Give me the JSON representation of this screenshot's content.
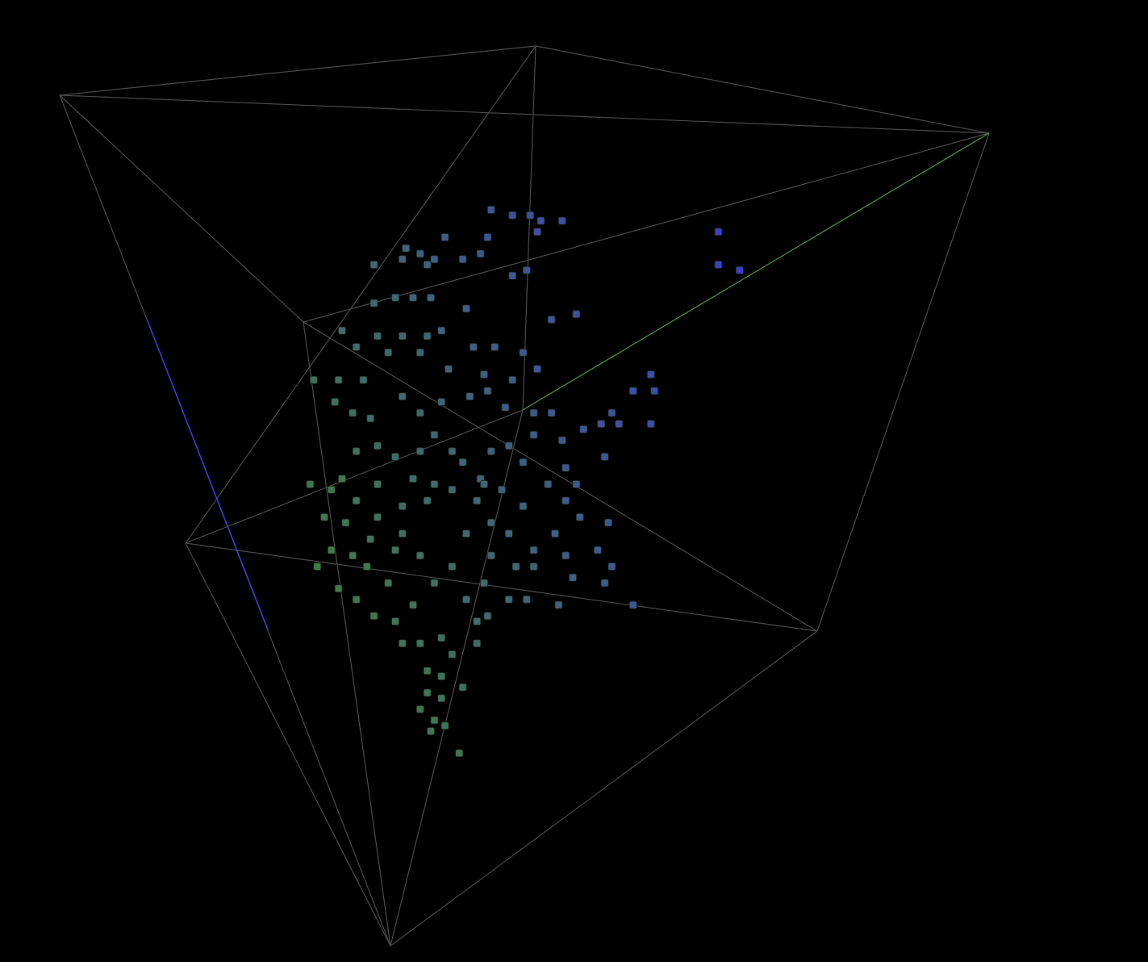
{
  "chart_data": {
    "type": "scatter3d",
    "x": [
      52,
      58,
      63,
      66,
      72,
      65,
      51,
      39,
      28,
      32,
      36,
      44,
      19,
      27,
      34,
      49,
      58,
      62,
      116,
      116,
      122,
      76,
      69,
      45,
      35,
      30,
      19,
      25,
      10,
      14,
      20,
      27,
      34,
      38,
      47,
      53,
      61,
      65,
      58,
      50,
      40,
      32,
      23,
      16,
      9,
      2,
      8,
      13,
      18,
      27,
      32,
      38,
      46,
      51,
      56,
      64,
      69,
      78,
      83,
      86,
      92,
      97,
      98,
      97,
      88,
      72,
      84,
      32,
      36,
      41,
      44,
      49,
      52,
      57,
      61,
      36,
      30,
      25,
      20,
      14,
      10,
      1,
      7,
      14,
      20,
      27,
      34,
      41,
      48,
      55,
      61,
      68,
      73,
      77,
      76,
      70,
      64,
      57,
      52,
      59,
      64,
      73,
      75,
      82,
      85,
      86,
      92,
      84,
      71,
      62,
      57,
      50,
      45,
      48,
      41,
      36,
      32,
      25,
      18,
      11,
      5,
      3,
      9,
      14,
      19,
      25,
      30,
      27,
      32,
      38,
      41,
      34,
      38,
      34,
      38,
      32,
      36,
      39,
      35,
      43,
      44,
      48,
      51,
      23,
      17,
      7,
      13,
      20,
      27,
      45,
      52,
      50,
      64,
      73
    ],
    "y": [
      100,
      99,
      99,
      98,
      98,
      96,
      95,
      95,
      93,
      92,
      91,
      91,
      90,
      91,
      90,
      92,
      88,
      89,
      96,
      90,
      89,
      81,
      80,
      82,
      84,
      84,
      83,
      84,
      78,
      75,
      77,
      77,
      77,
      78,
      75,
      75,
      74,
      71,
      69,
      70,
      71,
      74,
      74,
      69,
      69,
      69,
      65,
      63,
      62,
      66,
      63,
      65,
      66,
      67,
      64,
      63,
      63,
      60,
      61,
      63,
      67,
      70,
      67,
      61,
      61,
      58,
      55,
      56,
      59,
      56,
      54,
      51,
      56,
      57,
      54,
      50,
      51,
      55,
      57,
      56,
      51,
      50,
      49,
      47,
      44,
      46,
      47,
      49,
      47,
      49,
      46,
      50,
      47,
      44,
      50,
      41,
      38,
      41,
      43,
      35,
      35,
      37,
      33,
      38,
      43,
      35,
      28,
      32,
      28,
      29,
      29,
      32,
      29,
      25,
      35,
      32,
      37,
      38,
      40,
      43,
      44,
      35,
      31,
      29,
      26,
      25,
      28,
      21,
      21,
      22,
      19,
      16,
      15,
      12,
      11,
      9,
      7,
      6,
      5,
      1,
      13,
      21,
      26,
      32,
      35,
      38,
      37,
      50,
      41,
      41,
      37,
      50,
      59,
      53
    ],
    "z": [
      71,
      74,
      77,
      79,
      82,
      77,
      69,
      61,
      54,
      56,
      58,
      63,
      47,
      53,
      56,
      66,
      70,
      73,
      108,
      106,
      109,
      78,
      73,
      60,
      55,
      52,
      45,
      49,
      37,
      38,
      43,
      47,
      51,
      54,
      58,
      62,
      66,
      67,
      62,
      58,
      52,
      49,
      43,
      37,
      33,
      29,
      31,
      33,
      36,
      43,
      44,
      49,
      54,
      57,
      59,
      64,
      67,
      71,
      74,
      77,
      82,
      86,
      86,
      83,
      77,
      66,
      72,
      42,
      45,
      47,
      48,
      50,
      54,
      57,
      58,
      42,
      38,
      37,
      35,
      31,
      26,
      21,
      24,
      27,
      30,
      35,
      39,
      44,
      48,
      53,
      55,
      61,
      63,
      64,
      66,
      58,
      54,
      51,
      48,
      49,
      52,
      59,
      58,
      64,
      68,
      66,
      66,
      63,
      54,
      49,
      46,
      43,
      39,
      39,
      39,
      34,
      34,
      30,
      27,
      24,
      21,
      16,
      18,
      20,
      22,
      25,
      29,
      25,
      28,
      32,
      32,
      27,
      29,
      25,
      27,
      23,
      24,
      26,
      23,
      26,
      32,
      37,
      41,
      27,
      24,
      19,
      23,
      32,
      33,
      43,
      46,
      50,
      62,
      65
    ],
    "xlim": [
      0,
      125
    ],
    "ylim": [
      0,
      100
    ],
    "zlim": [
      10,
      110
    ],
    "colors": [
      "#3f7f3f",
      "#3c3cd0"
    ]
  }
}
